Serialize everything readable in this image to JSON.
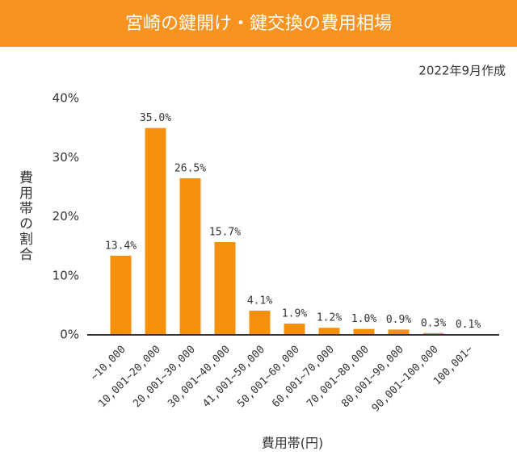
{
  "chart_data": {
    "type": "bar",
    "title": "宮崎の鍵開け・鍵交換の費用相場",
    "subtitle": "2022年9月作成",
    "x_label": "費用帯(円)",
    "y_label": "費用帯の割合",
    "categories": [
      "~10,000",
      "10,001~20,000",
      "20,001~30,000",
      "30,001~40,000",
      "41,001~50,000",
      "50,001~60,000",
      "60,001~70,000",
      "70,001~80,000",
      "80,001~90,000",
      "90,001~100,000",
      "100,001~"
    ],
    "values": [
      13.4,
      35.0,
      26.5,
      15.7,
      4.1,
      1.9,
      1.2,
      1.0,
      0.9,
      0.3,
      0.1
    ],
    "value_labels": [
      "13.4%",
      "35.0%",
      "26.5%",
      "15.7%",
      "4.1%",
      "1.9%",
      "1.2%",
      "1.0%",
      "0.9%",
      "0.3%",
      "0.1%"
    ],
    "color": "#f5900f",
    "ylim": [
      0,
      40
    ],
    "yticks": [
      {
        "value": 0,
        "label": "0%"
      },
      {
        "value": 10,
        "label": "10%"
      },
      {
        "value": 20,
        "label": "20%"
      },
      {
        "value": 30,
        "label": "30%"
      },
      {
        "value": 40,
        "label": "40%"
      }
    ],
    "grid": false
  }
}
